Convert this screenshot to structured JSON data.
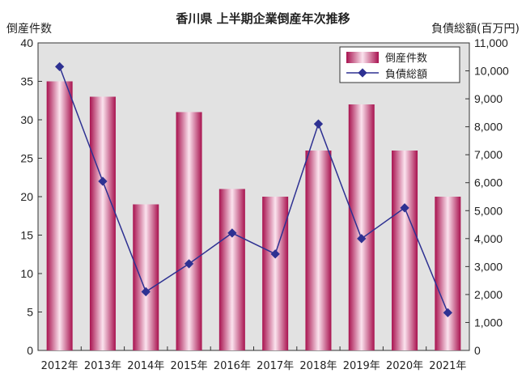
{
  "chart_data": {
    "type": "bar",
    "title": "香川県 上半期企業倒産年次推移",
    "ylabel_left": "倒産件数",
    "ylabel_right": "負債総額(百万円)",
    "categories": [
      "2012年",
      "2013年",
      "2014年",
      "2015年",
      "2016年",
      "2017年",
      "2018年",
      "2019年",
      "2020年",
      "2021年"
    ],
    "ylim_left": [
      0,
      40
    ],
    "yticks_left": [
      "0",
      "5",
      "10",
      "15",
      "20",
      "25",
      "30",
      "35",
      "40"
    ],
    "ylim_right": [
      0,
      11000
    ],
    "yticks_right": [
      "0",
      "1,000",
      "2,000",
      "3,000",
      "4,000",
      "5,000",
      "6,000",
      "7,000",
      "8,000",
      "9,000",
      "10,000",
      "11,000"
    ],
    "series": [
      {
        "name": "倒産件数",
        "type": "bar",
        "axis": "left",
        "values": [
          35,
          33,
          19,
          31,
          21,
          20,
          26,
          32,
          26,
          20
        ]
      },
      {
        "name": "負債総額",
        "type": "line",
        "axis": "right",
        "values": [
          10150,
          6050,
          2100,
          3100,
          4200,
          3450,
          8100,
          4000,
          5100,
          1350
        ]
      }
    ],
    "grid": false,
    "legend": "top-right",
    "colors": {
      "bar_dark": "#a8124f",
      "bar_light": "#fbe3ee",
      "line": "#2e3192",
      "plot_bg": "#e2e2e2"
    }
  }
}
